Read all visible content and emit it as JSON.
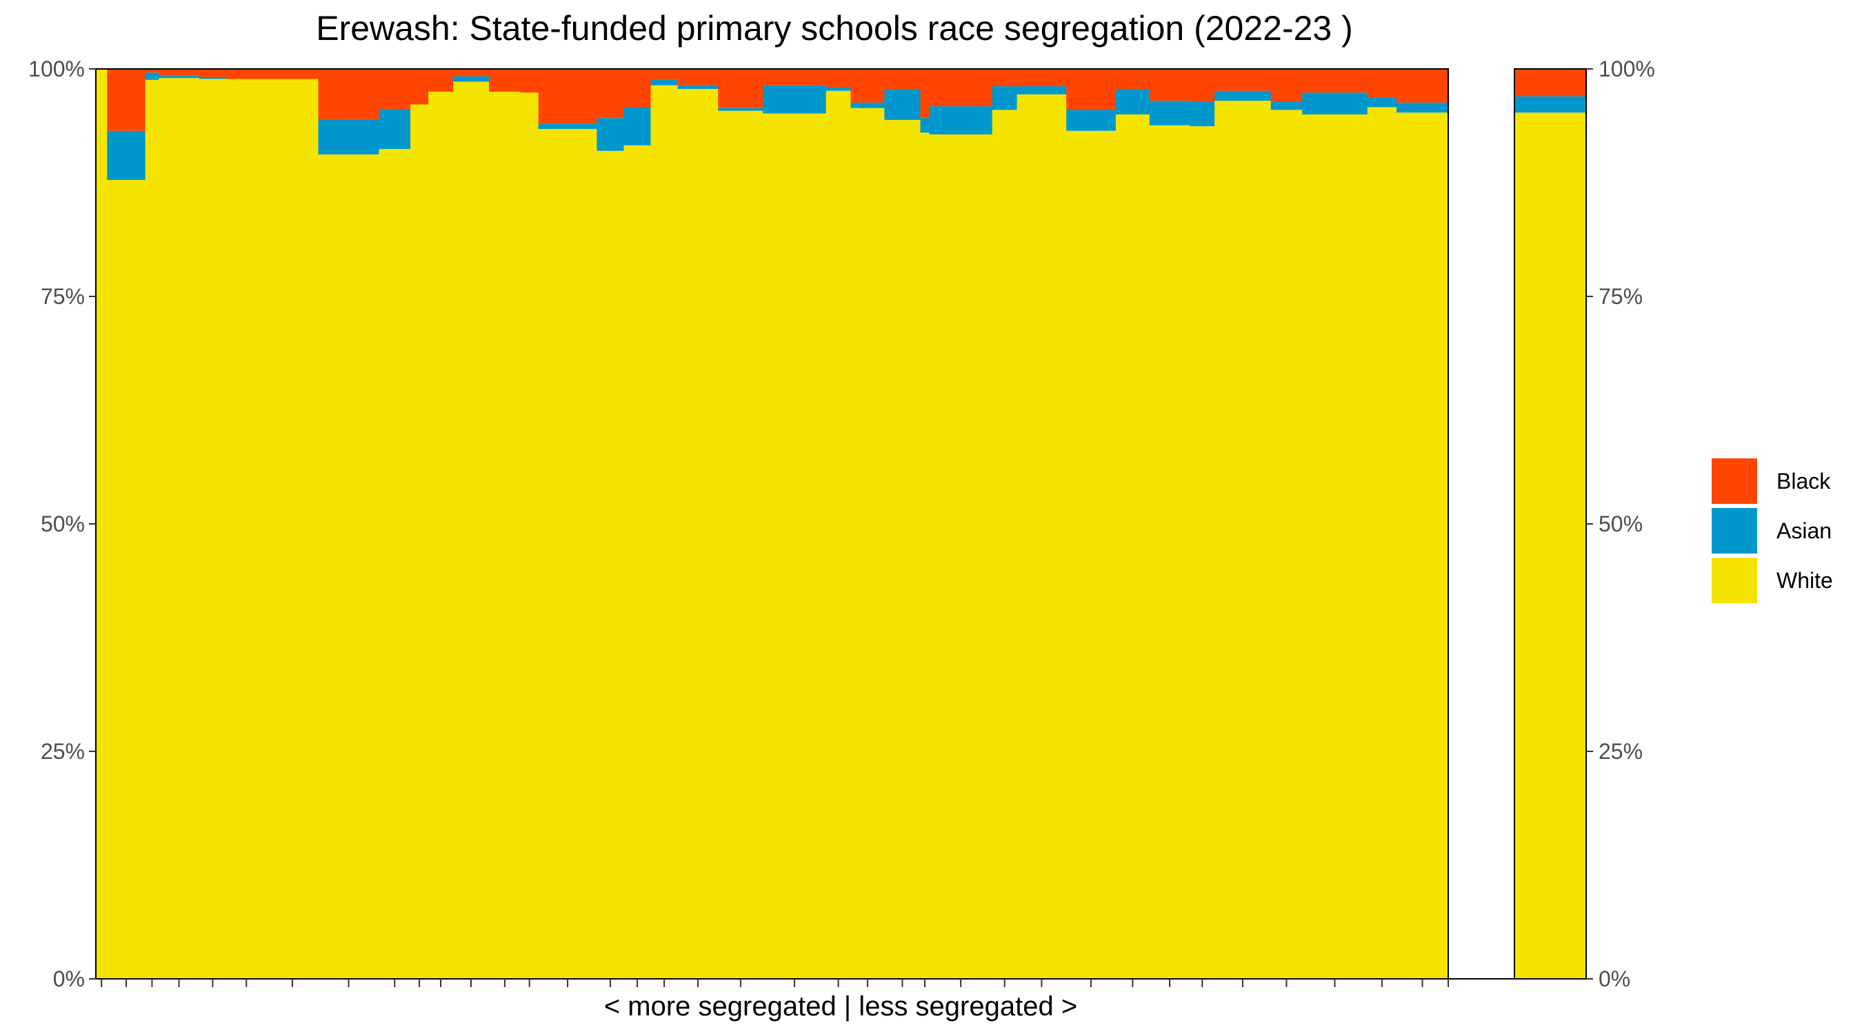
{
  "chart_data": {
    "type": "bar",
    "variant": "variable-width stacked percent bars (school composition)",
    "title": "Erewash: State-funded primary schools race segregation (2022-23 )",
    "xlabel": "< more segregated | less segregated >",
    "ylabel": "",
    "ylim": [
      0,
      100
    ],
    "y_ticks": [
      "0%",
      "25%",
      "50%",
      "75%",
      "100%"
    ],
    "grid": false,
    "legend": {
      "placement": "right",
      "entries": [
        "Black",
        "Asian",
        "White"
      ]
    },
    "colors": {
      "White": "#f5e400",
      "Asian": "#0098cc",
      "Black": "#ff4500"
    },
    "series_order_bottom_to_top": [
      "White",
      "Asian",
      "Black"
    ],
    "schools": [
      {
        "width": 0.5,
        "White": 100.0,
        "Asian": 0.0,
        "Black": 0.0
      },
      {
        "width": 1.7,
        "White": 87.8,
        "Asian": 5.4,
        "Black": 6.8
      },
      {
        "width": 0.6,
        "White": 98.8,
        "Asian": 0.8,
        "Black": 0.4
      },
      {
        "width": 1.8,
        "White": 99.0,
        "Asian": 0.3,
        "Black": 0.7
      },
      {
        "width": 1.2,
        "White": 98.9,
        "Asian": 0.2,
        "Black": 0.9
      },
      {
        "width": 1.8,
        "White": 98.9,
        "Asian": 0.0,
        "Black": 1.1
      },
      {
        "width": 2.3,
        "White": 98.9,
        "Asian": 0.0,
        "Black": 1.1
      },
      {
        "width": 2.7,
        "White": 90.6,
        "Asian": 3.8,
        "Black": 5.6
      },
      {
        "width": 1.4,
        "White": 91.2,
        "Asian": 4.4,
        "Black": 4.4
      },
      {
        "width": 0.8,
        "White": 96.1,
        "Asian": 0.0,
        "Black": 3.9
      },
      {
        "width": 1.1,
        "White": 97.5,
        "Asian": 0.0,
        "Black": 2.5
      },
      {
        "width": 1.6,
        "White": 98.6,
        "Asian": 0.6,
        "Black": 0.8
      },
      {
        "width": 1.4,
        "White": 97.5,
        "Asian": 0.0,
        "Black": 2.5
      },
      {
        "width": 0.8,
        "White": 97.4,
        "Asian": 0.0,
        "Black": 2.6
      },
      {
        "width": 2.6,
        "White": 93.4,
        "Asian": 0.6,
        "Black": 6.0
      },
      {
        "width": 1.2,
        "White": 91.0,
        "Asian": 3.6,
        "Black": 5.4
      },
      {
        "width": 1.2,
        "White": 91.6,
        "Asian": 4.2,
        "Black": 4.2
      },
      {
        "width": 1.2,
        "White": 98.2,
        "Asian": 0.6,
        "Black": 1.2
      },
      {
        "width": 1.8,
        "White": 97.8,
        "Asian": 0.4,
        "Black": 1.8
      },
      {
        "width": 2.0,
        "White": 95.4,
        "Asian": 0.3,
        "Black": 4.3
      },
      {
        "width": 2.8,
        "White": 95.1,
        "Asian": 3.1,
        "Black": 1.8
      },
      {
        "width": 1.1,
        "White": 97.6,
        "Asian": 0.4,
        "Black": 2.0
      },
      {
        "width": 1.5,
        "White": 95.7,
        "Asian": 0.6,
        "Black": 3.7
      },
      {
        "width": 1.6,
        "White": 94.4,
        "Asian": 3.4,
        "Black": 2.2
      },
      {
        "width": 0.4,
        "White": 93.0,
        "Asian": 1.6,
        "Black": 5.4
      },
      {
        "width": 2.8,
        "White": 92.8,
        "Asian": 3.1,
        "Black": 4.1
      },
      {
        "width": 1.1,
        "White": 95.5,
        "Asian": 2.6,
        "Black": 1.9
      },
      {
        "width": 2.2,
        "White": 97.2,
        "Asian": 0.9,
        "Black": 1.9
      },
      {
        "width": 2.2,
        "White": 93.2,
        "Asian": 2.3,
        "Black": 4.5
      },
      {
        "width": 1.5,
        "White": 95.0,
        "Asian": 2.8,
        "Black": 2.2
      },
      {
        "width": 1.8,
        "White": 93.8,
        "Asian": 2.7,
        "Black": 3.5
      },
      {
        "width": 1.1,
        "White": 93.7,
        "Asian": 2.7,
        "Black": 3.6
      },
      {
        "width": 2.5,
        "White": 96.5,
        "Asian": 1.1,
        "Black": 2.4
      },
      {
        "width": 1.4,
        "White": 95.5,
        "Asian": 0.9,
        "Black": 3.6
      },
      {
        "width": 2.9,
        "White": 95.0,
        "Asian": 2.4,
        "Black": 2.6
      },
      {
        "width": 1.3,
        "White": 95.8,
        "Asian": 1.1,
        "Black": 3.1
      },
      {
        "width": 2.3,
        "White": 95.2,
        "Asian": 1.1,
        "Black": 3.7
      }
    ],
    "summary_bar": {
      "White": 95.2,
      "Asian": 1.8,
      "Black": 3.0
    }
  }
}
